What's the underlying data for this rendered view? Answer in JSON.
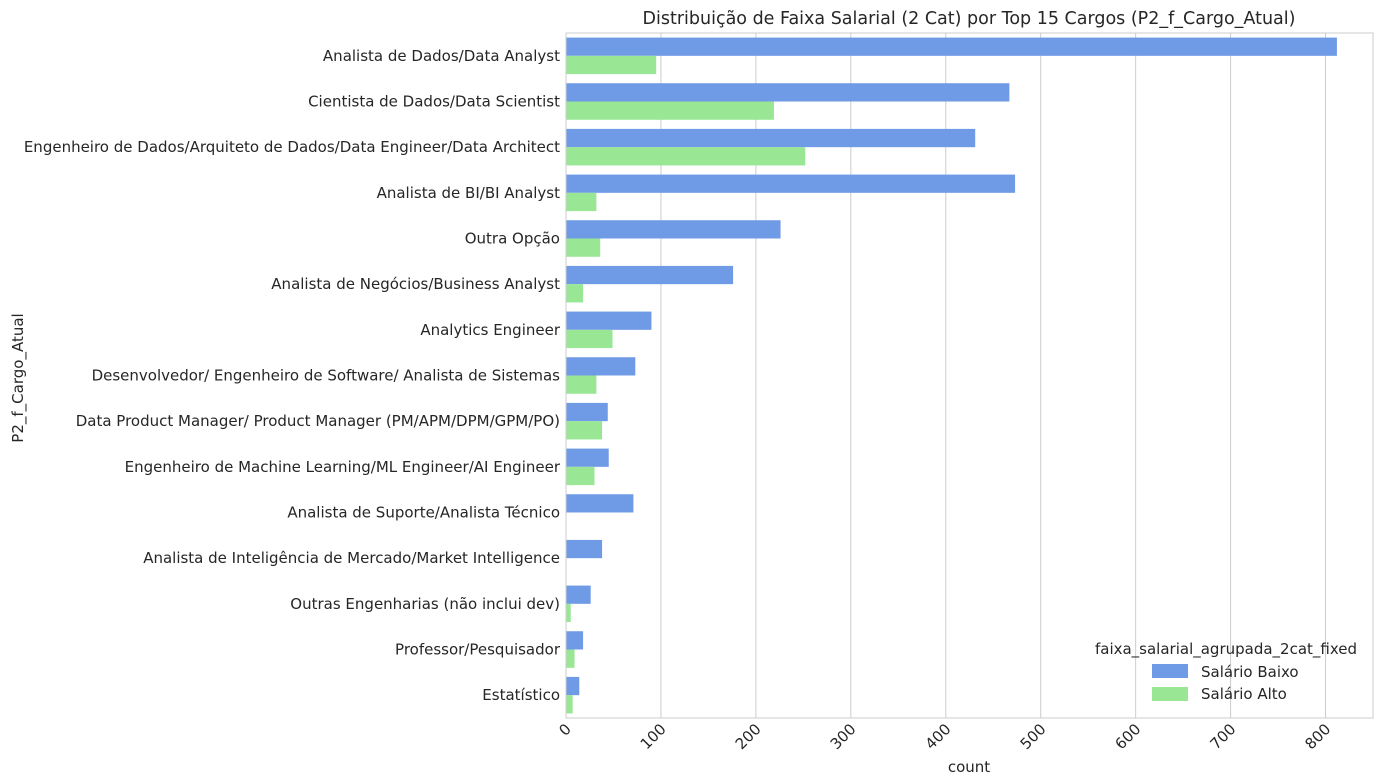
{
  "chart_data": {
    "type": "bar",
    "orientation": "horizontal",
    "title": "Distribuição de Faixa Salarial (2 Cat) por Top 15 Cargos (P2_f_Cargo_Atual)",
    "xlabel": "count",
    "ylabel": "P2_f_Cargo_Atual",
    "xlim": [
      0,
      850
    ],
    "xticks": [
      0,
      100,
      200,
      300,
      400,
      500,
      600,
      700,
      800
    ],
    "grid": "vertical",
    "legend": {
      "title": "faixa_salarial_agrupada_2cat_fixed",
      "placement": "lower-right"
    },
    "categories": [
      "Analista de Dados/Data Analyst",
      "Cientista de Dados/Data Scientist",
      "Engenheiro de Dados/Arquiteto de Dados/Data Engineer/Data Architect",
      "Analista de BI/BI Analyst",
      "Outra Opção",
      "Analista de Negócios/Business Analyst",
      "Analytics Engineer",
      "Desenvolvedor/ Engenheiro de Software/ Analista de Sistemas",
      "Data Product Manager/ Product Manager (PM/APM/DPM/GPM/PO)",
      "Engenheiro de Machine Learning/ML Engineer/AI Engineer",
      "Analista de Suporte/Analista Técnico",
      "Analista de Inteligência de Mercado/Market Intelligence",
      "Outras Engenharias (não inclui dev)",
      "Professor/Pesquisador",
      "Estatístico"
    ],
    "series": [
      {
        "name": "Salário Baixo",
        "color": "#6f9be6",
        "values": [
          812,
          467,
          431,
          473,
          226,
          176,
          90,
          73,
          44,
          45,
          71,
          38,
          26,
          18,
          14
        ]
      },
      {
        "name": "Salário Alto",
        "color": "#99e695",
        "values": [
          95,
          219,
          252,
          32,
          36,
          18,
          49,
          32,
          38,
          30,
          0,
          0,
          5,
          9,
          7
        ]
      }
    ]
  }
}
